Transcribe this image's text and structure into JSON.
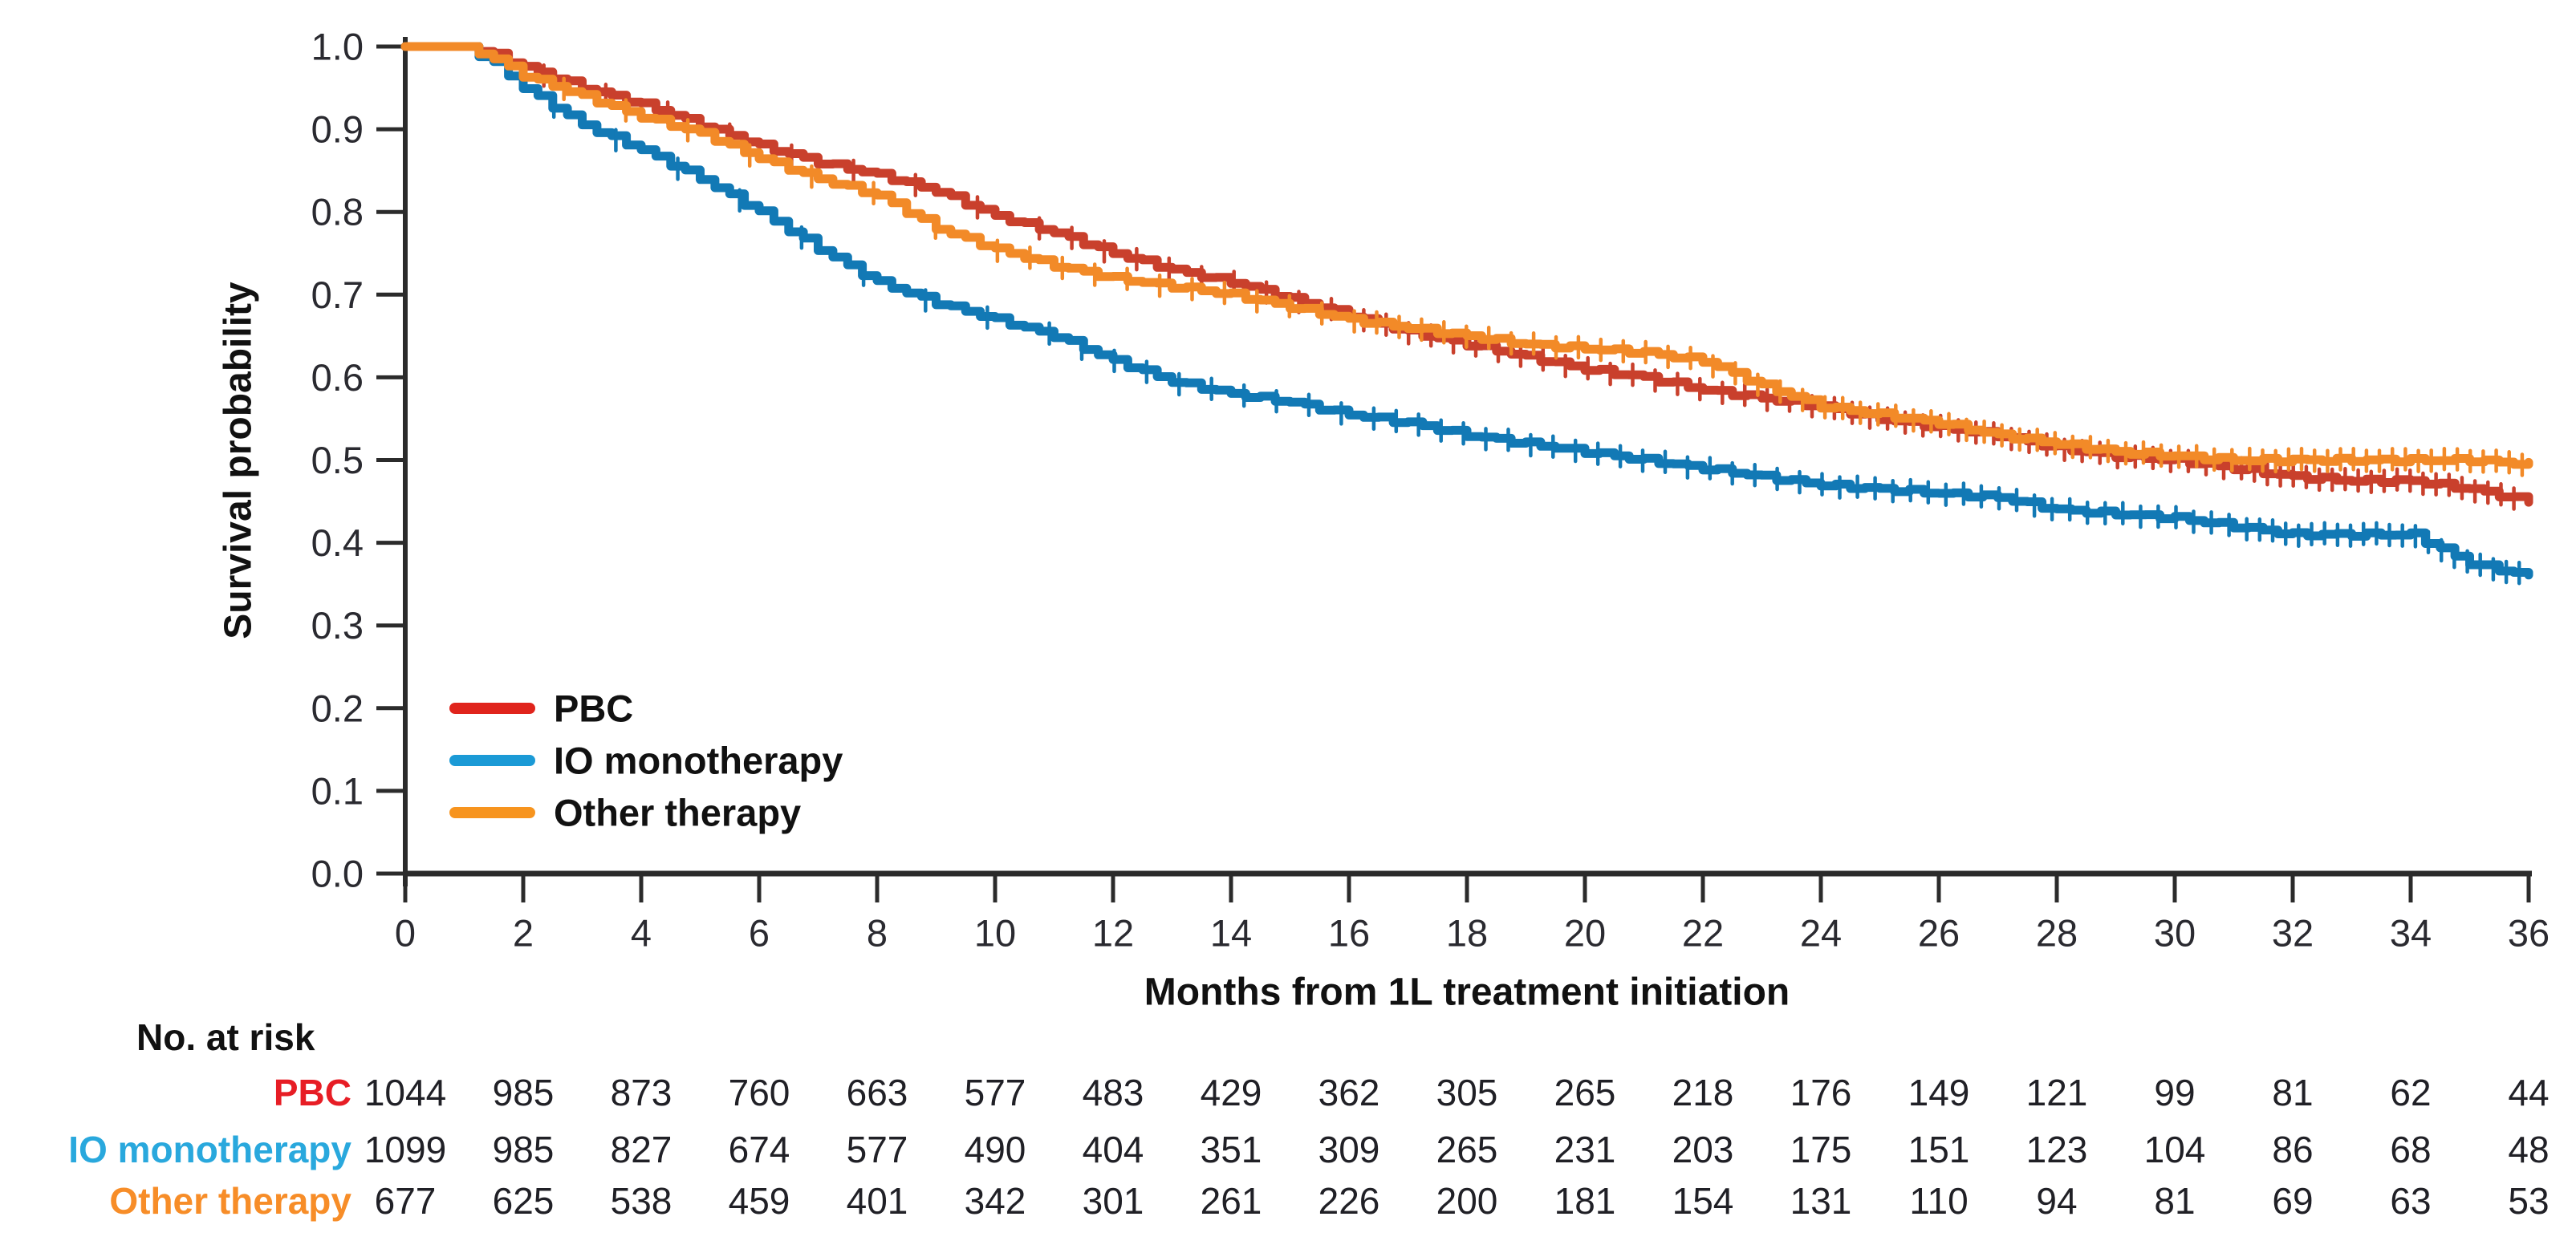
{
  "chart_data": {
    "type": "line",
    "subtype": "kaplan-meier-step",
    "title": "",
    "xlabel": "Months from 1L treatment initiation",
    "ylabel": "Survival probability",
    "xlim": [
      0,
      36
    ],
    "ylim": [
      0.0,
      1.0
    ],
    "x_ticks": [
      0,
      2,
      4,
      6,
      8,
      10,
      12,
      14,
      16,
      18,
      20,
      22,
      24,
      26,
      28,
      30,
      32,
      34,
      36
    ],
    "y_ticks": [
      "1.0",
      "0.9",
      "0.8",
      "0.7",
      "0.6",
      "0.5",
      "0.4",
      "0.3",
      "0.2",
      "0.1",
      "0.0"
    ],
    "y_tick_values": [
      1.0,
      0.9,
      0.8,
      0.7,
      0.6,
      0.5,
      0.4,
      0.3,
      0.2,
      0.1,
      0.0
    ],
    "grid": false,
    "axis_color": "#2b2b2b",
    "tick_label_color": "#2a2a30",
    "legend_position": "lower-left-inside",
    "anchor_x": [
      0,
      1,
      1.5,
      2,
      3,
      4,
      5,
      6,
      7,
      8,
      9,
      10,
      11,
      12,
      13,
      14,
      15,
      16,
      17,
      18,
      19,
      20,
      21,
      22,
      23,
      24,
      25,
      26,
      27,
      28,
      29,
      30,
      31,
      32,
      33,
      34,
      35,
      36
    ],
    "series": [
      {
        "name": "PBC",
        "curve_color": "#c9402c",
        "legend_color": "#e0241c",
        "label_color": "#e71d25",
        "values": [
          1.0,
          1.0,
          0.99,
          0.975,
          0.95,
          0.93,
          0.905,
          0.88,
          0.86,
          0.845,
          0.825,
          0.795,
          0.775,
          0.75,
          0.73,
          0.715,
          0.695,
          0.675,
          0.655,
          0.64,
          0.625,
          0.61,
          0.6,
          0.585,
          0.575,
          0.565,
          0.55,
          0.54,
          0.53,
          0.515,
          0.505,
          0.5,
          0.49,
          0.48,
          0.475,
          0.475,
          0.465,
          0.45
        ]
      },
      {
        "name": "IO monotherapy",
        "curve_color": "#1279b5",
        "legend_color": "#1b9ad6",
        "label_color": "#29a8dd",
        "values": [
          1.0,
          1.0,
          0.98,
          0.95,
          0.905,
          0.875,
          0.84,
          0.8,
          0.755,
          0.715,
          0.69,
          0.67,
          0.65,
          0.62,
          0.595,
          0.58,
          0.57,
          0.555,
          0.545,
          0.53,
          0.52,
          0.51,
          0.5,
          0.49,
          0.48,
          0.47,
          0.465,
          0.46,
          0.455,
          0.44,
          0.435,
          0.43,
          0.42,
          0.41,
          0.41,
          0.41,
          0.375,
          0.36
        ]
      },
      {
        "name": "Other therapy",
        "curve_color": "#f28a28",
        "legend_color": "#f7941e",
        "label_color": "#f78d28",
        "values": [
          1.0,
          1.0,
          0.985,
          0.965,
          0.94,
          0.915,
          0.895,
          0.865,
          0.84,
          0.82,
          0.78,
          0.755,
          0.735,
          0.72,
          0.71,
          0.7,
          0.685,
          0.67,
          0.66,
          0.65,
          0.64,
          0.635,
          0.63,
          0.62,
          0.59,
          0.565,
          0.555,
          0.545,
          0.53,
          0.52,
          0.51,
          0.505,
          0.5,
          0.5,
          0.5,
          0.5,
          0.5,
          0.495
        ]
      }
    ],
    "risk_table": {
      "header": "No. at risk",
      "months": [
        0,
        2,
        4,
        6,
        8,
        10,
        12,
        14,
        16,
        18,
        20,
        22,
        24,
        26,
        28,
        30,
        32,
        34,
        36
      ],
      "rows": [
        {
          "name": "PBC",
          "color": "#e71d25",
          "values": [
            1044,
            985,
            873,
            760,
            663,
            577,
            483,
            429,
            362,
            305,
            265,
            218,
            176,
            149,
            121,
            99,
            81,
            62,
            44
          ]
        },
        {
          "name": "IO monotherapy",
          "color": "#29a8dd",
          "values": [
            1099,
            985,
            827,
            674,
            577,
            490,
            404,
            351,
            309,
            265,
            231,
            203,
            175,
            151,
            123,
            104,
            86,
            68,
            48
          ]
        },
        {
          "name": "Other therapy",
          "color": "#f78d28",
          "values": [
            677,
            625,
            538,
            459,
            401,
            342,
            301,
            261,
            226,
            200,
            181,
            154,
            131,
            110,
            94,
            81,
            69,
            63,
            53
          ]
        }
      ]
    }
  }
}
